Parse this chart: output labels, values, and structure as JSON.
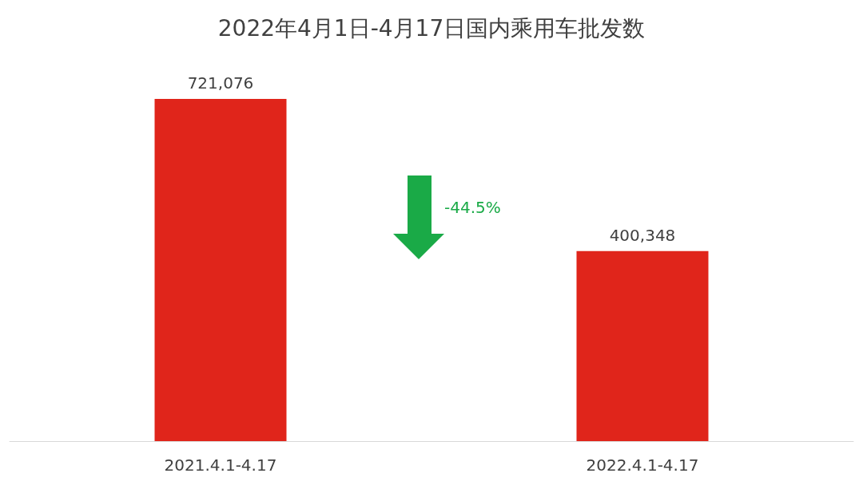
{
  "chart_data": {
    "type": "bar",
    "title": "2022年4月1日-4月17日国内乘用车批发数",
    "categories": [
      "2021.4.1-4.17",
      "2022.4.1-4.17"
    ],
    "values": [
      721076,
      400348
    ],
    "value_labels": [
      "721,076",
      "400,348"
    ],
    "color": "#e0251b",
    "annotations": [
      "-44.5%"
    ]
  }
}
